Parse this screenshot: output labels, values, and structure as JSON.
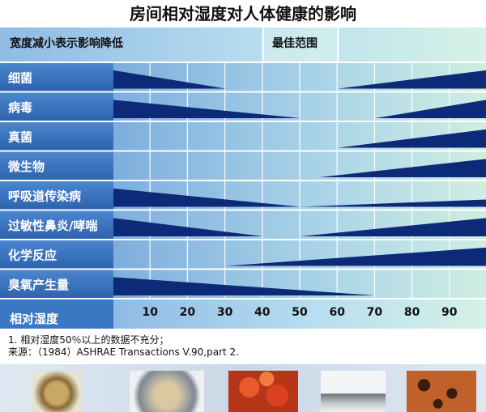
{
  "title": "房间相对湿度对人体健康的影响",
  "header": {
    "left_label": "宽度减小表示影响降低",
    "optimal_label": "最佳范围"
  },
  "axis": {
    "label": "相对湿度",
    "ticks": [
      10,
      20,
      30,
      40,
      50,
      60,
      70,
      80,
      90
    ]
  },
  "chart_data": {
    "type": "area",
    "title": "房间相对湿度对人体健康的影响",
    "xlabel": "相对湿度",
    "xlim": [
      0,
      100
    ],
    "optimal_range": [
      40,
      60
    ],
    "categories": [
      "细菌",
      "病毒",
      "真菌",
      "微生物",
      "呼吸道传染病",
      "过敏性鼻炎/哮喘",
      "化学反应",
      "臭氧产生量"
    ],
    "series": [
      {
        "name": "细菌",
        "low": {
          "from": 0,
          "to": 30,
          "start_width": 1.0
        },
        "high": {
          "from": 60,
          "to": 100,
          "end_width": 1.0
        }
      },
      {
        "name": "病毒",
        "low": {
          "from": 0,
          "to": 50,
          "start_width": 1.0
        },
        "high": {
          "from": 70,
          "to": 100,
          "end_width": 1.0
        }
      },
      {
        "name": "真菌",
        "low": null,
        "high": {
          "from": 60,
          "to": 100,
          "end_width": 1.0
        }
      },
      {
        "name": "微生物",
        "low": null,
        "high": {
          "from": 55,
          "to": 100,
          "end_width": 1.0
        }
      },
      {
        "name": "呼吸道传染病",
        "low": {
          "from": 0,
          "to": 50,
          "start_width": 1.0
        },
        "high": {
          "from": 50,
          "to": 100,
          "end_width": 0.4
        }
      },
      {
        "name": "过敏性鼻炎/哮喘",
        "low": {
          "from": 0,
          "to": 40,
          "start_width": 1.0
        },
        "high": {
          "from": 50,
          "to": 100,
          "end_width": 1.0
        }
      },
      {
        "name": "化学反应",
        "low": null,
        "high": {
          "from": 30,
          "to": 100,
          "end_width": 1.0
        }
      },
      {
        "name": "臭氧产生量",
        "low": {
          "from": 0,
          "to": 70,
          "start_width": 1.0
        },
        "high": null
      }
    ]
  },
  "notes": {
    "line1": "1. 相对湿度50％以上的数据不充分；",
    "line2": "来源：（1984）ASHRAE  Transactions V.90,part 2."
  },
  "photos": [
    {
      "name": "dust-mite"
    },
    {
      "name": "petri-dish"
    },
    {
      "name": "pollen"
    },
    {
      "name": "tissue"
    },
    {
      "name": "mold-spores"
    }
  ],
  "colors": {
    "band": "#0c2a78",
    "left_panel": "#2f6fbe",
    "row_bg": "#9fc3e6",
    "optimal_bg": "#cfeee4",
    "header_bg": "#8fb8e0"
  }
}
